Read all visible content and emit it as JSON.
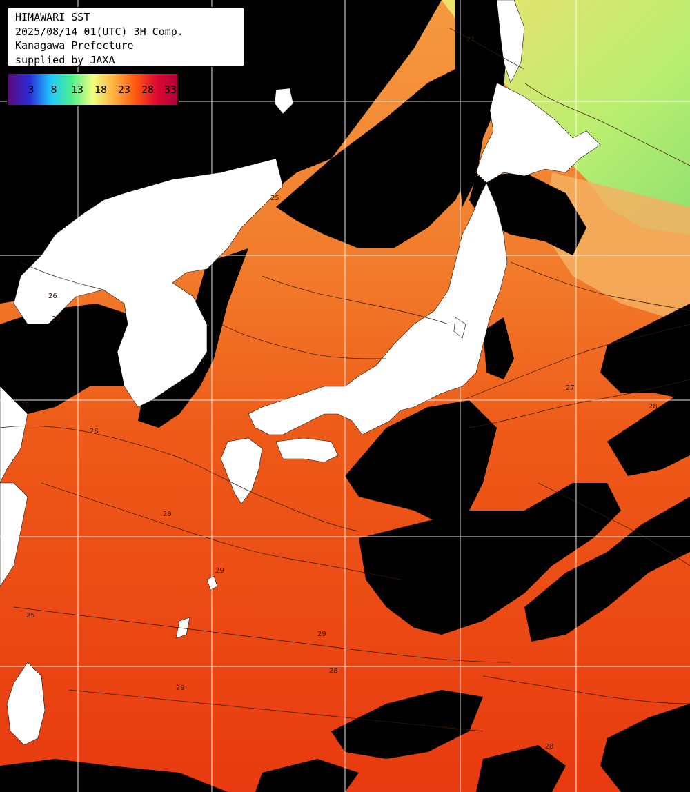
{
  "header": {
    "line1": "HIMAWARI SST",
    "line2": "2025/08/14 01(UTC) 3H Comp.",
    "line3": "Kanagawa Prefecture",
    "line4": "supplied by JAXA"
  },
  "legend": {
    "ticks": [
      "3",
      "8",
      "13",
      "18",
      "23",
      "28",
      "33"
    ],
    "gradient_colors": [
      "#5a0a7a",
      "#2a2ad8",
      "#1ec8ff",
      "#4df08a",
      "#f0ff80",
      "#ffb040",
      "#ff5a10",
      "#e00a30",
      "#b0003a"
    ]
  },
  "map": {
    "sea_color": "#ee4a14",
    "warm_sea_color": "#e83a10",
    "cool_sea_color": "#f59a40",
    "cold_sea_color": "#b8ee70",
    "land_color": "#ffffff",
    "cloud_color": "#000000",
    "graticule_color": "#ffffff",
    "contour_labels": [
      "21",
      "25",
      "26",
      "27",
      "28",
      "29"
    ]
  }
}
